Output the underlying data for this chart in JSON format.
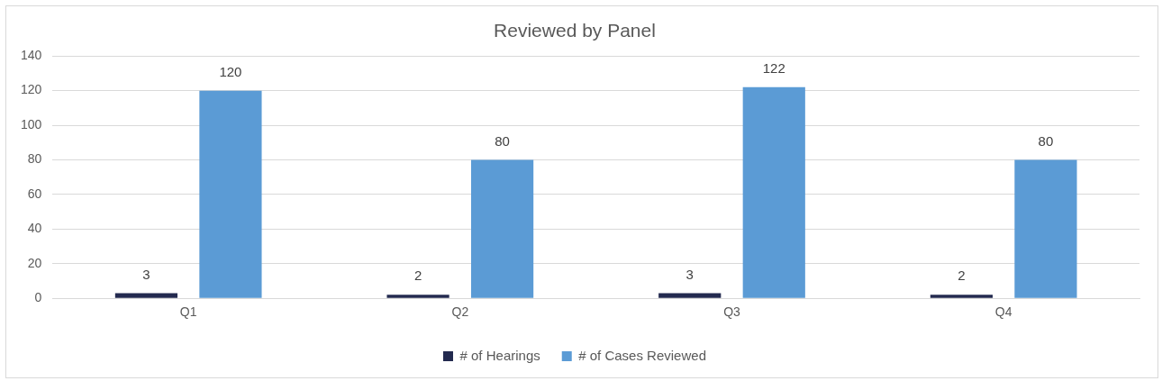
{
  "chart_data": {
    "type": "bar",
    "title": "Reviewed by Panel",
    "categories": [
      "Q1",
      "Q2",
      "Q3",
      "Q4"
    ],
    "series": [
      {
        "name": "# of Hearings",
        "color": "#232a4f",
        "values": [
          3,
          2,
          3,
          2
        ]
      },
      {
        "name": "# of Cases Reviewed",
        "color": "#5b9bd5",
        "values": [
          120,
          80,
          122,
          80
        ]
      }
    ],
    "ylim": [
      0,
      140
    ],
    "yticks": [
      0,
      20,
      40,
      60,
      80,
      100,
      120,
      140
    ],
    "grid": "y",
    "legend": "bottom",
    "data_labels": true
  }
}
